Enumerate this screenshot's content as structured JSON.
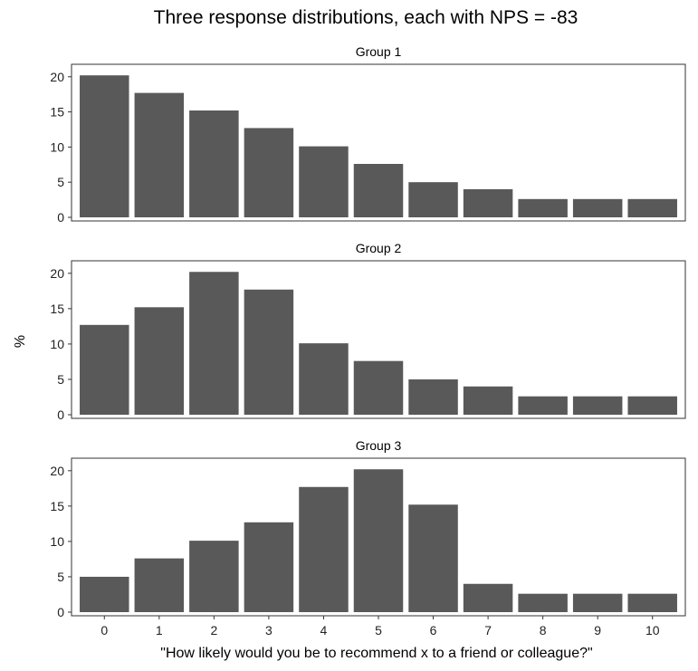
{
  "chart_data": {
    "type": "bar",
    "title": "Three response distributions, each with NPS = -83",
    "xlabel": "\"How likely would you be to recommend x to a friend or colleague?\"",
    "ylabel": "%",
    "categories": [
      "0",
      "1",
      "2",
      "3",
      "4",
      "5",
      "6",
      "7",
      "8",
      "9",
      "10"
    ],
    "yticks": [
      "0",
      "5",
      "10",
      "15",
      "20"
    ],
    "ylim": [
      0,
      21
    ],
    "bar_color": "#595959",
    "series": [
      {
        "name": "Group 1",
        "values": [
          20.2,
          17.7,
          15.2,
          12.7,
          10.1,
          7.6,
          5.0,
          4.0,
          2.6,
          2.6,
          2.6
        ]
      },
      {
        "name": "Group 2",
        "values": [
          12.7,
          15.2,
          20.2,
          17.7,
          10.1,
          7.6,
          5.0,
          4.0,
          2.6,
          2.6,
          2.6
        ]
      },
      {
        "name": "Group 3",
        "values": [
          5.0,
          7.6,
          10.1,
          12.7,
          17.7,
          20.2,
          15.2,
          4.0,
          2.6,
          2.6,
          2.6
        ]
      }
    ]
  }
}
